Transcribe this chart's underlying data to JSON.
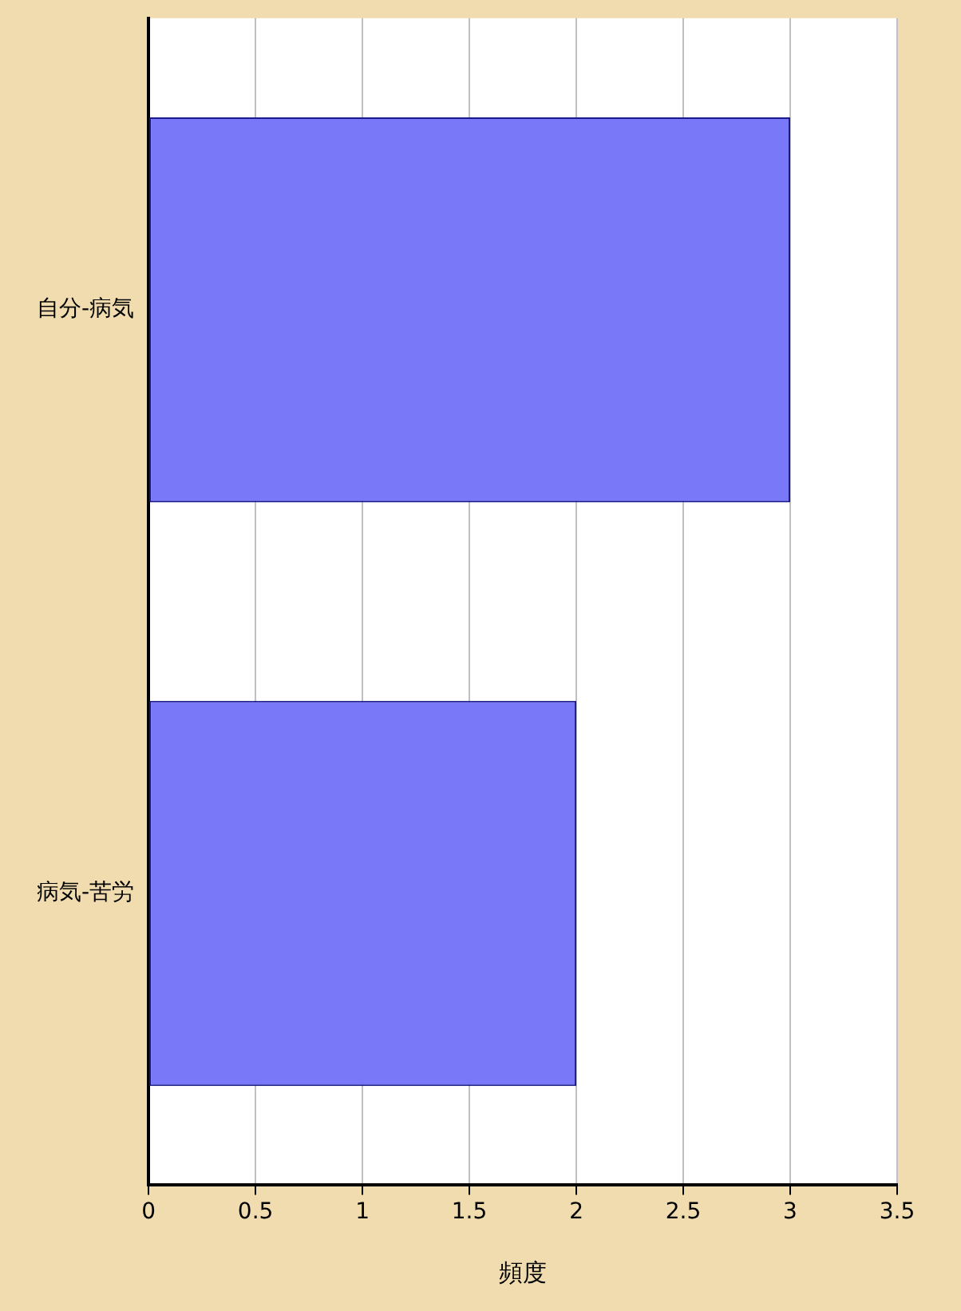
{
  "chart_data": {
    "type": "bar",
    "orientation": "horizontal",
    "xlabel": "頻度",
    "categories": [
      "自分-病気",
      "病気-苦労"
    ],
    "values": [
      3,
      2
    ],
    "color": "#7878f8",
    "xlim": [
      0,
      3.5
    ],
    "xticks": [
      0,
      0.5,
      1,
      1.5,
      2,
      2.5,
      3,
      3.5
    ],
    "grid": "x"
  }
}
